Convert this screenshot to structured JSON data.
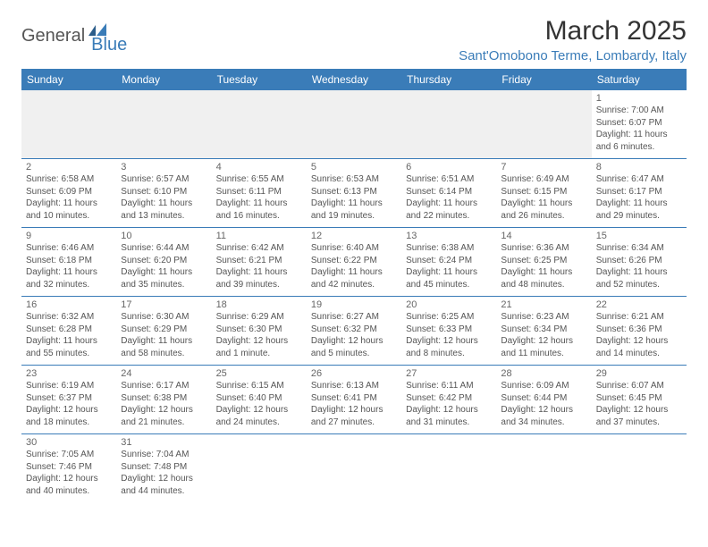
{
  "logo": {
    "main": "General",
    "sub": "Blue"
  },
  "title": "March 2025",
  "location": "Sant'Omobono Terme, Lombardy, Italy",
  "colors": {
    "brand": "#3a7cb8",
    "header_bg": "#3a7cb8",
    "header_text": "#ffffff",
    "border": "#3a7cb8",
    "empty_bg": "#f0f0f0",
    "text": "#555555"
  },
  "day_headers": [
    "Sunday",
    "Monday",
    "Tuesday",
    "Wednesday",
    "Thursday",
    "Friday",
    "Saturday"
  ],
  "weeks": [
    [
      null,
      null,
      null,
      null,
      null,
      null,
      {
        "n": "1",
        "sr": "7:00 AM",
        "ss": "6:07 PM",
        "dl": "11 hours and 6 minutes."
      }
    ],
    [
      {
        "n": "2",
        "sr": "6:58 AM",
        "ss": "6:09 PM",
        "dl": "11 hours and 10 minutes."
      },
      {
        "n": "3",
        "sr": "6:57 AM",
        "ss": "6:10 PM",
        "dl": "11 hours and 13 minutes."
      },
      {
        "n": "4",
        "sr": "6:55 AM",
        "ss": "6:11 PM",
        "dl": "11 hours and 16 minutes."
      },
      {
        "n": "5",
        "sr": "6:53 AM",
        "ss": "6:13 PM",
        "dl": "11 hours and 19 minutes."
      },
      {
        "n": "6",
        "sr": "6:51 AM",
        "ss": "6:14 PM",
        "dl": "11 hours and 22 minutes."
      },
      {
        "n": "7",
        "sr": "6:49 AM",
        "ss": "6:15 PM",
        "dl": "11 hours and 26 minutes."
      },
      {
        "n": "8",
        "sr": "6:47 AM",
        "ss": "6:17 PM",
        "dl": "11 hours and 29 minutes."
      }
    ],
    [
      {
        "n": "9",
        "sr": "6:46 AM",
        "ss": "6:18 PM",
        "dl": "11 hours and 32 minutes."
      },
      {
        "n": "10",
        "sr": "6:44 AM",
        "ss": "6:20 PM",
        "dl": "11 hours and 35 minutes."
      },
      {
        "n": "11",
        "sr": "6:42 AM",
        "ss": "6:21 PM",
        "dl": "11 hours and 39 minutes."
      },
      {
        "n": "12",
        "sr": "6:40 AM",
        "ss": "6:22 PM",
        "dl": "11 hours and 42 minutes."
      },
      {
        "n": "13",
        "sr": "6:38 AM",
        "ss": "6:24 PM",
        "dl": "11 hours and 45 minutes."
      },
      {
        "n": "14",
        "sr": "6:36 AM",
        "ss": "6:25 PM",
        "dl": "11 hours and 48 minutes."
      },
      {
        "n": "15",
        "sr": "6:34 AM",
        "ss": "6:26 PM",
        "dl": "11 hours and 52 minutes."
      }
    ],
    [
      {
        "n": "16",
        "sr": "6:32 AM",
        "ss": "6:28 PM",
        "dl": "11 hours and 55 minutes."
      },
      {
        "n": "17",
        "sr": "6:30 AM",
        "ss": "6:29 PM",
        "dl": "11 hours and 58 minutes."
      },
      {
        "n": "18",
        "sr": "6:29 AM",
        "ss": "6:30 PM",
        "dl": "12 hours and 1 minute."
      },
      {
        "n": "19",
        "sr": "6:27 AM",
        "ss": "6:32 PM",
        "dl": "12 hours and 5 minutes."
      },
      {
        "n": "20",
        "sr": "6:25 AM",
        "ss": "6:33 PM",
        "dl": "12 hours and 8 minutes."
      },
      {
        "n": "21",
        "sr": "6:23 AM",
        "ss": "6:34 PM",
        "dl": "12 hours and 11 minutes."
      },
      {
        "n": "22",
        "sr": "6:21 AM",
        "ss": "6:36 PM",
        "dl": "12 hours and 14 minutes."
      }
    ],
    [
      {
        "n": "23",
        "sr": "6:19 AM",
        "ss": "6:37 PM",
        "dl": "12 hours and 18 minutes."
      },
      {
        "n": "24",
        "sr": "6:17 AM",
        "ss": "6:38 PM",
        "dl": "12 hours and 21 minutes."
      },
      {
        "n": "25",
        "sr": "6:15 AM",
        "ss": "6:40 PM",
        "dl": "12 hours and 24 minutes."
      },
      {
        "n": "26",
        "sr": "6:13 AM",
        "ss": "6:41 PM",
        "dl": "12 hours and 27 minutes."
      },
      {
        "n": "27",
        "sr": "6:11 AM",
        "ss": "6:42 PM",
        "dl": "12 hours and 31 minutes."
      },
      {
        "n": "28",
        "sr": "6:09 AM",
        "ss": "6:44 PM",
        "dl": "12 hours and 34 minutes."
      },
      {
        "n": "29",
        "sr": "6:07 AM",
        "ss": "6:45 PM",
        "dl": "12 hours and 37 minutes."
      }
    ],
    [
      {
        "n": "30",
        "sr": "7:05 AM",
        "ss": "7:46 PM",
        "dl": "12 hours and 40 minutes."
      },
      {
        "n": "31",
        "sr": "7:04 AM",
        "ss": "7:48 PM",
        "dl": "12 hours and 44 minutes."
      },
      null,
      null,
      null,
      null,
      null
    ]
  ],
  "labels": {
    "sunrise": "Sunrise:",
    "sunset": "Sunset:",
    "daylight": "Daylight:"
  }
}
